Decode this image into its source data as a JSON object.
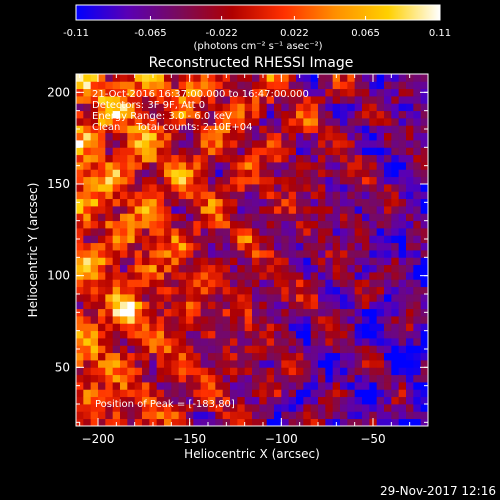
{
  "colorbar": {
    "tick_labels": [
      "-0.11",
      "-0.065",
      "-0.022",
      "0.022",
      "0.065",
      "0.11"
    ],
    "tick_values": [
      -0.11,
      -0.065,
      -0.022,
      0.022,
      0.065,
      0.11
    ],
    "range": [
      -0.11,
      0.11
    ],
    "unit_label": "(photons cm⁻² s⁻¹ asec⁻²)",
    "colormap": "rainbow-red-temperature",
    "colors": [
      "#0000ff",
      "#5a00b4",
      "#7a0a5a",
      "#b00000",
      "#ff3000",
      "#ff9000",
      "#ffd000",
      "#ffffff"
    ]
  },
  "chart_data": {
    "type": "heatmap",
    "title": "Reconstructed RHESSI Image",
    "xlabel": "Heliocentric X (arcsec)",
    "ylabel": "Heliocentric Y (arcsec)",
    "xlim": [
      -212,
      -20
    ],
    "ylim": [
      18,
      210
    ],
    "x_ticks": [
      -200,
      -150,
      -100,
      -50
    ],
    "x_tick_labels": [
      "−200",
      "−150",
      "−100",
      "−50"
    ],
    "y_ticks": [
      50,
      100,
      150,
      200
    ],
    "y_tick_labels": [
      "50",
      "100",
      "150",
      "200"
    ],
    "grid": false,
    "pixel_size_arcsec": 4,
    "peak_position": [
      -183,
      80
    ],
    "value_range": [
      -0.11,
      0.11
    ],
    "annotations": [
      "21-Oct-2016 16:37:00.000 to 16:47:00.000",
      "Detectors: 3F 9F, Att 0",
      "Energy Range: 3.0 - 6.0 keV",
      "Clean     Total counts: 2.10E+04",
      "Position of Peak = [-183,80]"
    ]
  },
  "footer": {
    "timestamp": "29-Nov-2017 12:16"
  }
}
